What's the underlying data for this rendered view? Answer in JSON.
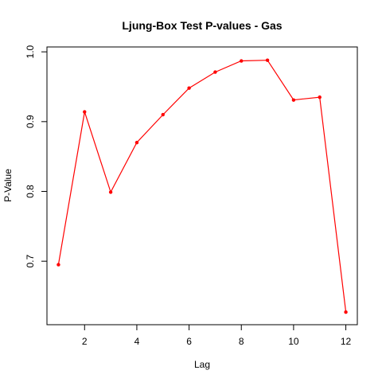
{
  "chart_data": {
    "type": "line",
    "title": "Ljung-Box Test P-values - Gas",
    "xlabel": "Lag",
    "ylabel": "P-Value",
    "xlim": [
      0.56,
      12.44
    ],
    "ylim": [
      0.609,
      1.007
    ],
    "x_ticks": [
      2,
      4,
      6,
      8,
      10,
      12
    ],
    "y_ticks": [
      0.7,
      0.8,
      0.9,
      1.0
    ],
    "y_tick_labels": [
      "0.7",
      "0.8",
      "0.9",
      "1.0"
    ],
    "grid": false,
    "series": [
      {
        "color": "#ff0000",
        "x": [
          1,
          2,
          3,
          4,
          5,
          6,
          7,
          8,
          9,
          10,
          11,
          12
        ],
        "y": [
          0.695,
          0.914,
          0.799,
          0.87,
          0.91,
          0.948,
          0.971,
          0.987,
          0.988,
          0.931,
          0.935,
          0.627
        ]
      }
    ]
  }
}
